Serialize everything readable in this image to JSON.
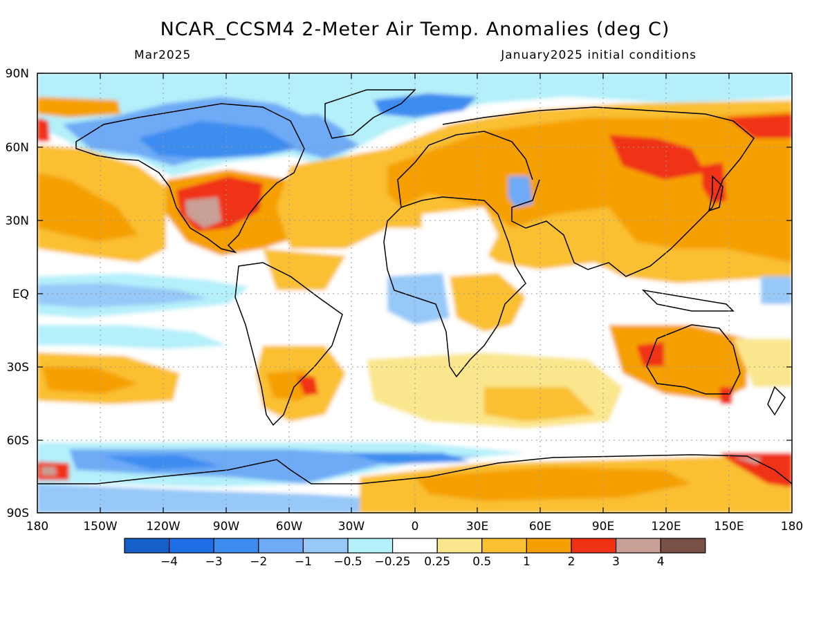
{
  "title": "NCAR_CCSM4 2-Meter Air Temp. Anomalies (deg C)",
  "subtitle_left": "Mar2025",
  "subtitle_right": "January2025 initial conditions",
  "lat_labels": [
    "90N",
    "60N",
    "30N",
    "EQ",
    "30S",
    "60S",
    "90S"
  ],
  "lon_labels": [
    "180",
    "150W",
    "120W",
    "90W",
    "60W",
    "30W",
    "0",
    "30E",
    "60E",
    "90E",
    "120E",
    "150E",
    "180"
  ],
  "colorbar": {
    "colors": [
      "#1560c8",
      "#1e6ee6",
      "#3c8cf0",
      "#6eaaf5",
      "#96c8f8",
      "#b4f0fa",
      "#ffffff",
      "#fae68c",
      "#fac032",
      "#f5a000",
      "#f03214",
      "#c8a096",
      "#785046"
    ],
    "labels": [
      "-4",
      "-3",
      "-2",
      "-1",
      "-0.5",
      "-0.25",
      "0.25",
      "0.5",
      "1",
      "2",
      "3",
      "4"
    ]
  },
  "colors": {
    "ocean_background": "#ffffff",
    "coastline": "#000000",
    "gridline": "#999999"
  }
}
